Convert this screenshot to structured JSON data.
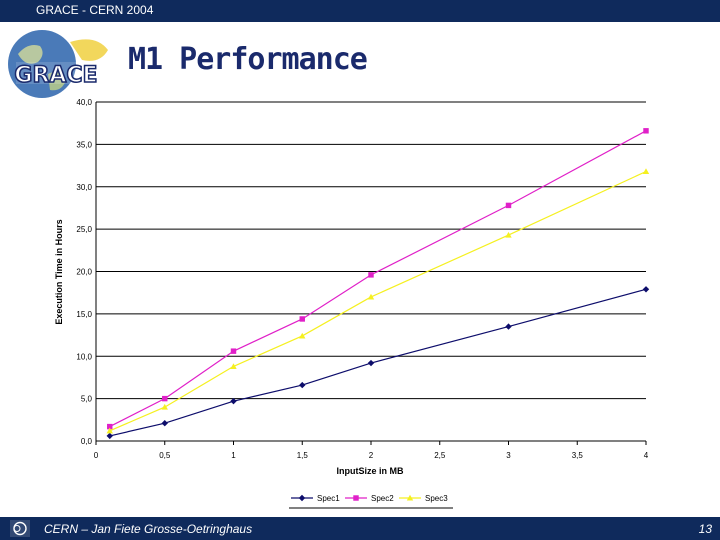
{
  "header": {
    "text": "GRACE - CERN 2004"
  },
  "logo": {
    "text": "GRACE"
  },
  "slide": {
    "title": "M1 Performance"
  },
  "footer": {
    "author": "CERN – Jan Fiete Grosse-Oetringhaus",
    "page": "13"
  },
  "colors": {
    "bar": "#0f2a5c",
    "spec1": "#0d0d6b",
    "spec2": "#e020c8",
    "spec3": "#f5f020"
  },
  "chart_data": {
    "type": "line",
    "xlabel": "InputSize in MB",
    "ylabel": "Execution Time in Hours",
    "xlim": [
      0,
      4
    ],
    "ylim": [
      0,
      40
    ],
    "xticks": [
      0,
      0.5,
      1,
      1.5,
      2,
      2.5,
      3,
      3.5,
      4
    ],
    "xtick_labels": [
      "0",
      "0,5",
      "1",
      "1,5",
      "2",
      "2,5",
      "3",
      "3,5",
      "4"
    ],
    "yticks": [
      0,
      5,
      10,
      15,
      20,
      25,
      30,
      35,
      40
    ],
    "ytick_labels": [
      "0,0",
      "5,0",
      "10,0",
      "15,0",
      "20,0",
      "25,0",
      "30,0",
      "35,0",
      "40,0"
    ],
    "legend_position": "bottom",
    "series": [
      {
        "name": "Spec1",
        "color": "#0d0d6b",
        "marker": "diamond",
        "x": [
          0.1,
          0.5,
          1,
          1.5,
          2,
          3,
          4
        ],
        "y": [
          0.6,
          2.1,
          4.7,
          6.6,
          9.2,
          13.5,
          17.9
        ]
      },
      {
        "name": "Spec2",
        "color": "#e020c8",
        "marker": "square",
        "x": [
          0.1,
          0.5,
          1,
          1.5,
          2,
          3,
          4
        ],
        "y": [
          1.7,
          5.0,
          10.6,
          14.4,
          19.6,
          27.8,
          36.6
        ]
      },
      {
        "name": "Spec3",
        "color": "#f5f020",
        "marker": "triangle",
        "x": [
          0.1,
          0.5,
          1,
          1.5,
          2,
          3,
          4
        ],
        "y": [
          1.2,
          4.0,
          8.8,
          12.4,
          17.0,
          24.3,
          31.8
        ]
      }
    ]
  }
}
